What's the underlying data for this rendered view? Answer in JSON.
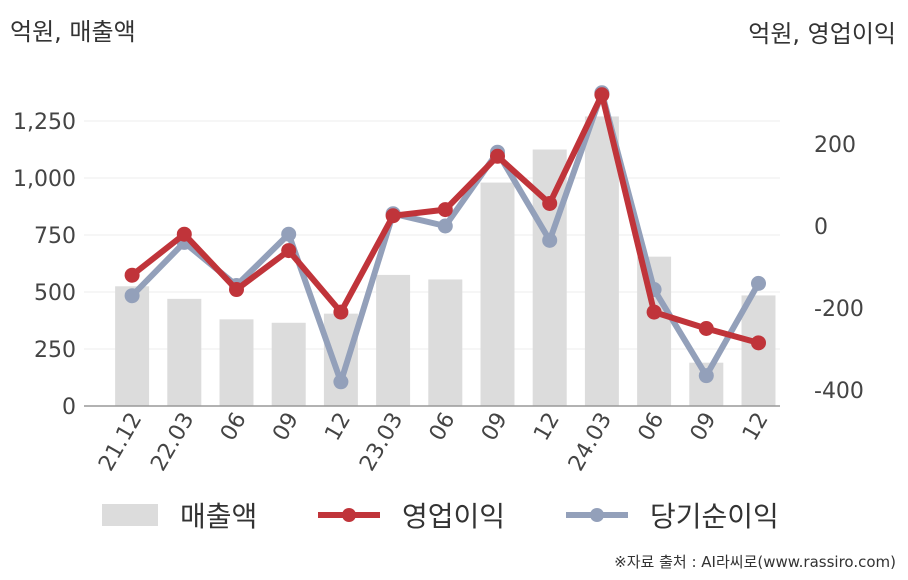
{
  "units": {
    "left": "억원, 매출액",
    "right": "억원, 영업이익"
  },
  "source": "※자료 출처 : AI라씨로(www.rassiro.com)",
  "colors": {
    "revenue": "#dcdcdc",
    "operating_profit": "#c0343a",
    "net_income": "#93a0ba"
  },
  "chart_data": {
    "type": "bar",
    "categories": [
      "21.12",
      "22.03",
      "06",
      "09",
      "12",
      "23.03",
      "06",
      "09",
      "12",
      "24.03",
      "06",
      "09",
      "12"
    ],
    "left_axis": {
      "ylim": [
        0,
        1400
      ],
      "ticks": [
        0,
        250,
        500,
        750,
        1000,
        1250
      ],
      "tick_labels": [
        "0",
        "250",
        "500",
        "750",
        "1,000",
        "1,250"
      ]
    },
    "right_axis": {
      "ylim": [
        -440,
        400
      ],
      "ticks": [
        -400,
        -200,
        0,
        200
      ],
      "tick_labels": [
        "-400",
        "-200",
        "0",
        "200"
      ]
    },
    "series": [
      {
        "name": "매출액",
        "type": "bar",
        "axis": "left",
        "values": [
          525,
          470,
          380,
          365,
          405,
          575,
          555,
          980,
          1125,
          1270,
          655,
          190,
          485
        ]
      },
      {
        "name": "영업이익",
        "type": "line",
        "axis": "right",
        "values": [
          -120,
          -20,
          -155,
          -60,
          -210,
          25,
          40,
          170,
          55,
          320,
          -210,
          -250,
          -285
        ]
      },
      {
        "name": "당기순이익",
        "type": "line",
        "axis": "right",
        "values": [
          -170,
          -40,
          -145,
          -20,
          -380,
          30,
          0,
          180,
          -35,
          325,
          -155,
          -365,
          -140
        ]
      }
    ],
    "grid": "horizontal",
    "legend": "bottom"
  }
}
